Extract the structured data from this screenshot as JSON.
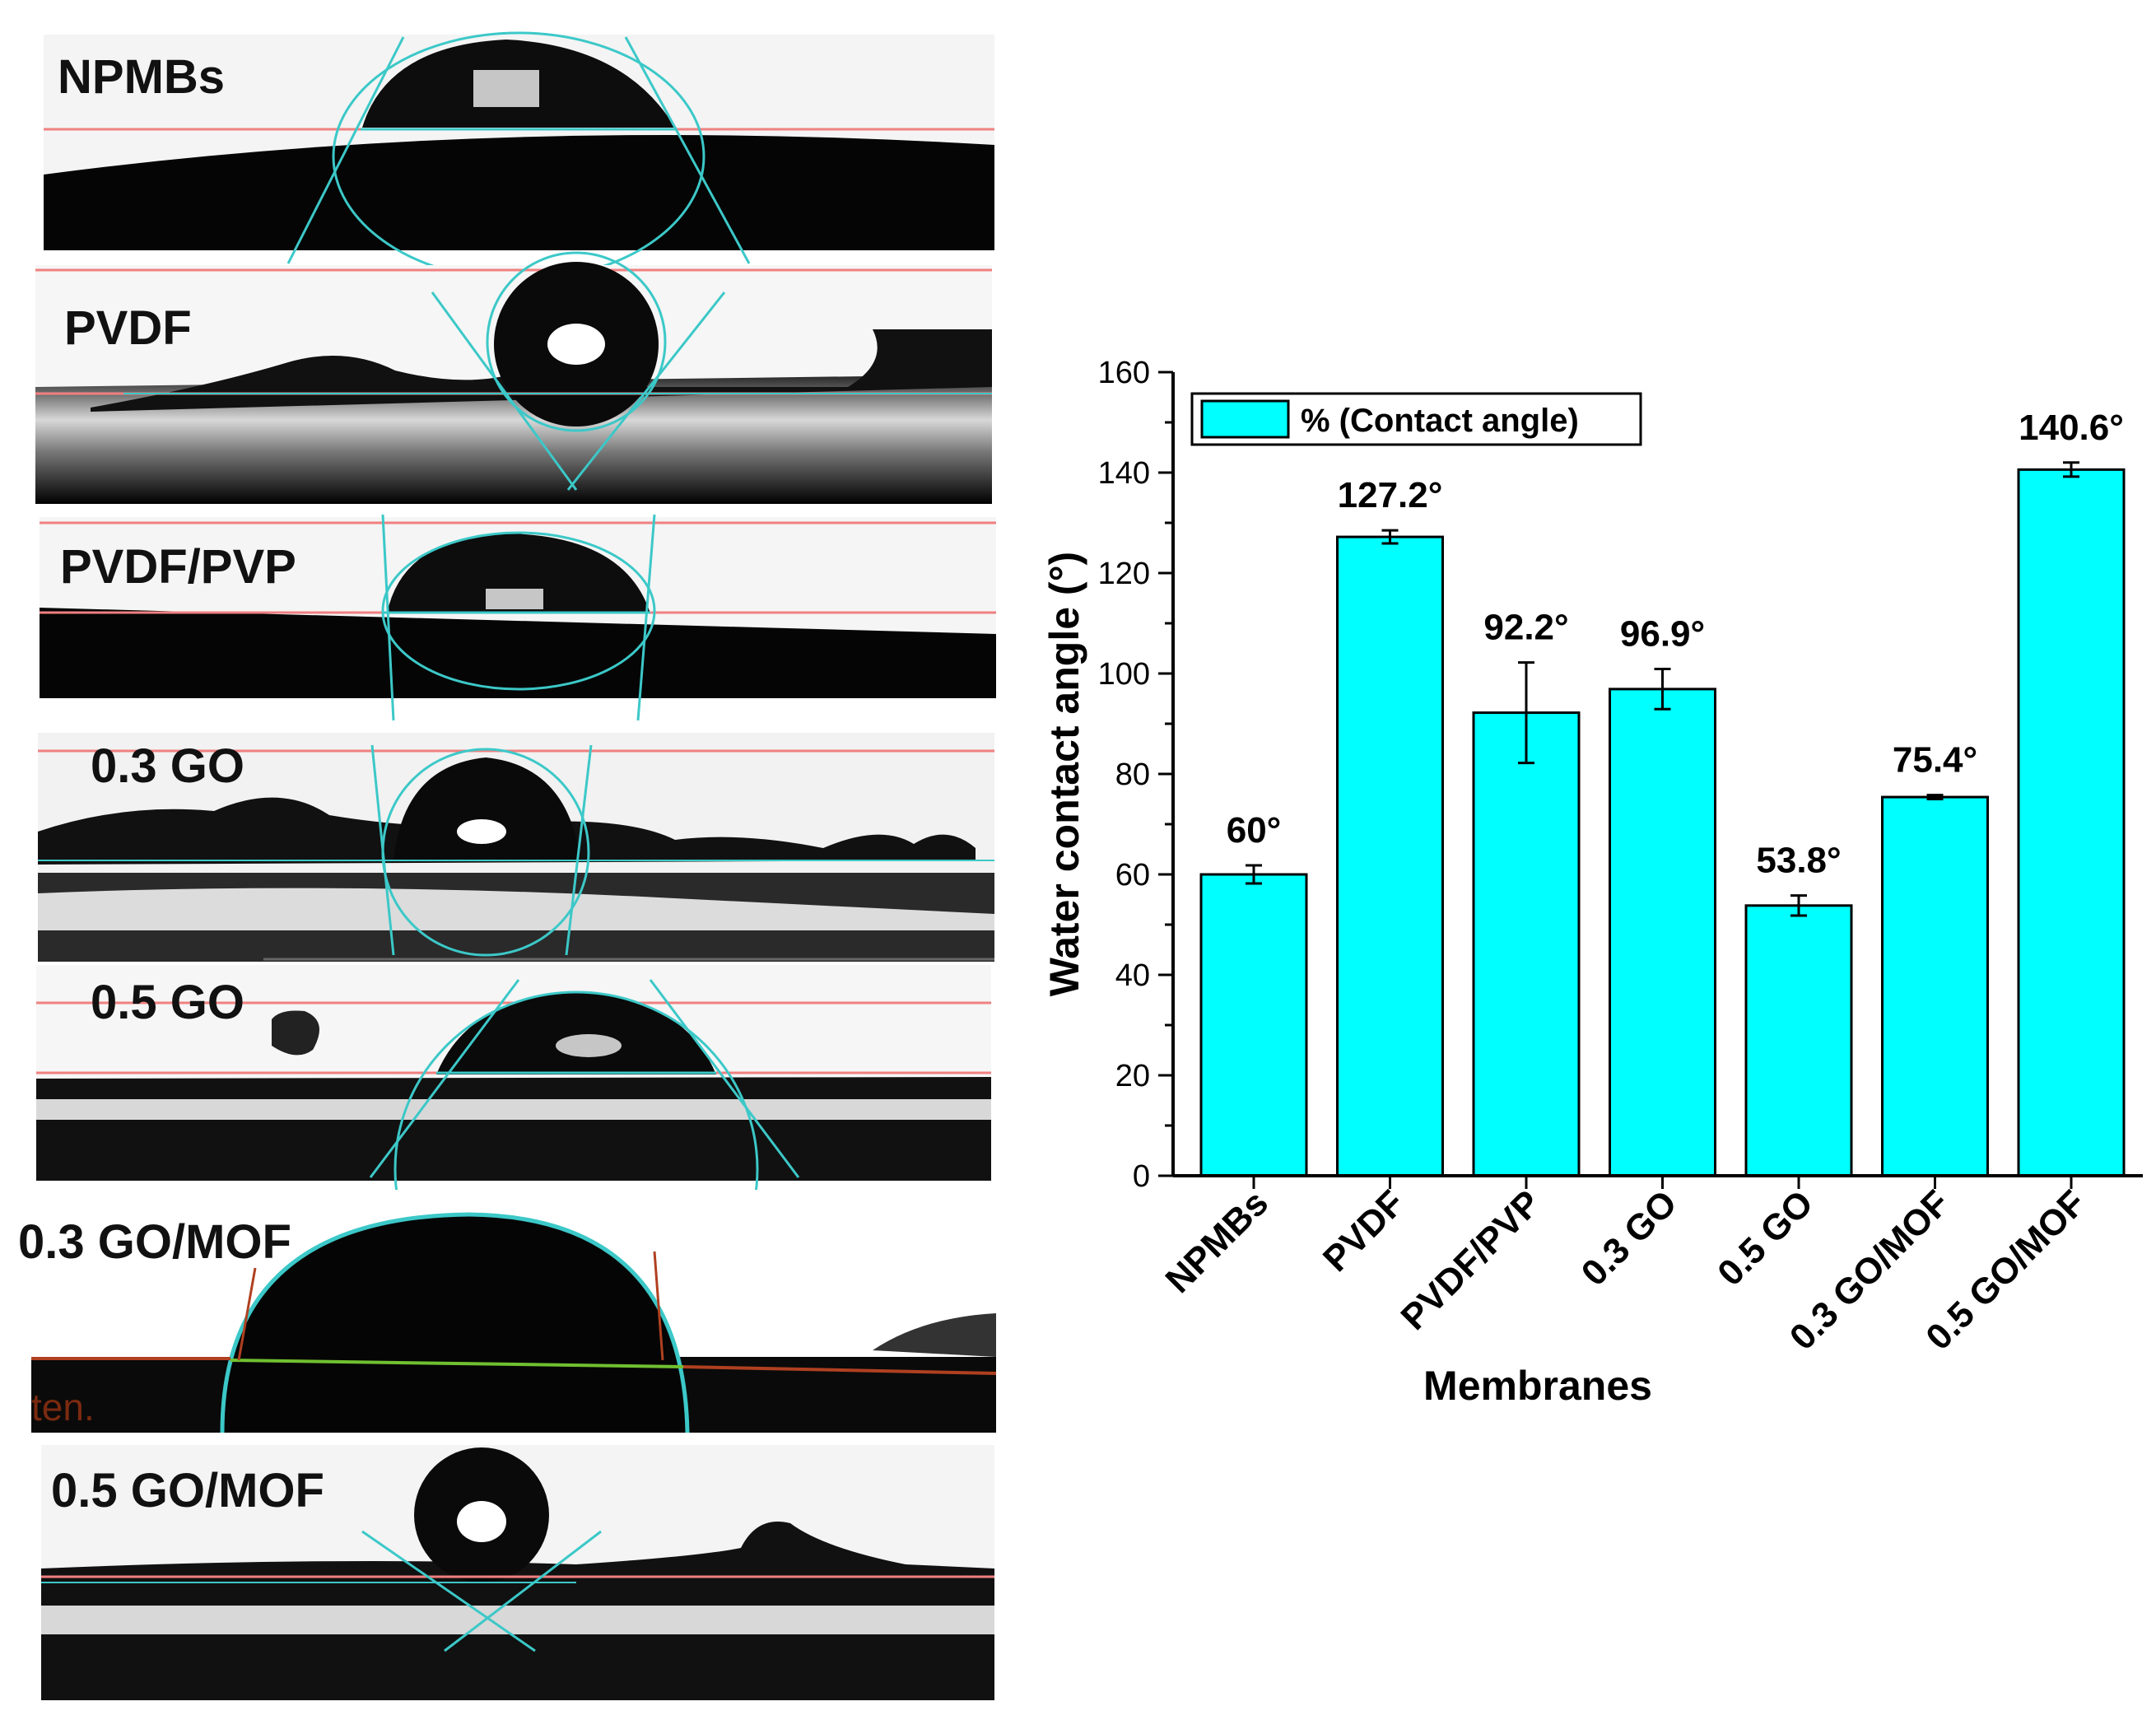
{
  "panels": [
    {
      "label": "NPMBs"
    },
    {
      "label": "PVDF"
    },
    {
      "label": "PVDF/PVP"
    },
    {
      "label": "0.3 GO"
    },
    {
      "label": "0.5 GO"
    },
    {
      "label": "0.3 GO/MOF"
    },
    {
      "label": "0.5 GO/MOF"
    }
  ],
  "panel_artifact_text": "ten.",
  "colors": {
    "bar": "#00ffff",
    "fit_line": "#3cc8c8",
    "baseline": "#f08080",
    "drop": "#0a0a0a"
  },
  "chart_data": {
    "type": "bar",
    "categories": [
      "NPMBs",
      "PVDF",
      "PVDF/PVP",
      "0.3 GO",
      "0.5 GO",
      "0.3 GO/MOF",
      "0.5 GO/MOF"
    ],
    "series": [
      {
        "name": "% (Contact angle)",
        "values": [
          60,
          127.2,
          92.2,
          96.9,
          53.8,
          75.4,
          140.6
        ],
        "errors": [
          1.8,
          1.3,
          10,
          4,
          2,
          0.4,
          1.4
        ],
        "labels": [
          "60°",
          "127.2°",
          "92.2°",
          "96.9°",
          "53.8°",
          "75.4°",
          "140.6°"
        ]
      }
    ],
    "xlabel": "Membranes",
    "ylabel": "Water contact angle (°)",
    "ylim": [
      0,
      160
    ],
    "yticks": [
      0,
      20,
      40,
      60,
      80,
      100,
      120,
      140,
      160
    ],
    "legend": {
      "label": "% (Contact angle)",
      "position": "top-left"
    },
    "grid": false
  }
}
